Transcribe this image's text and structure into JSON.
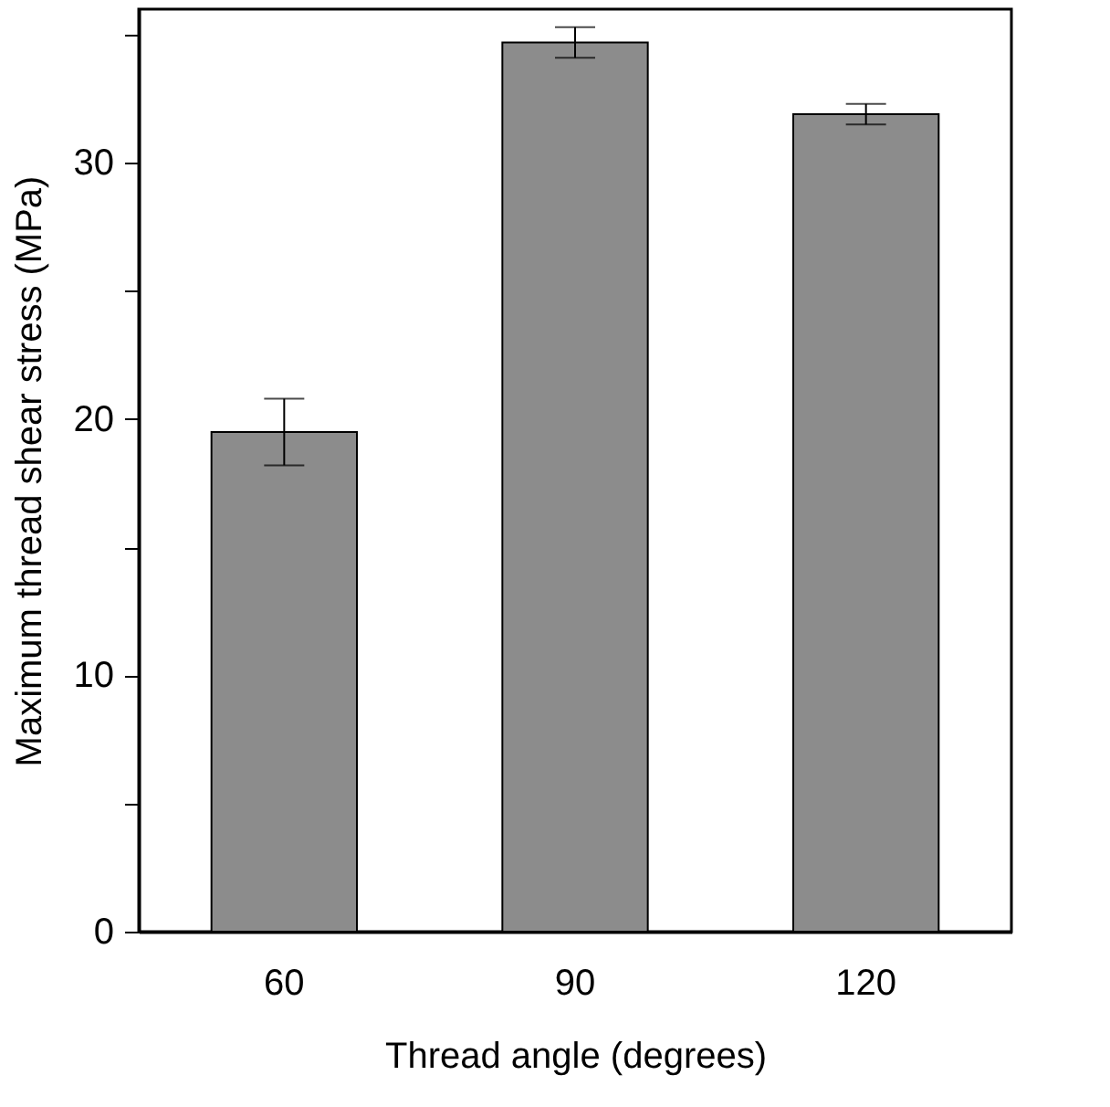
{
  "chart_data": {
    "type": "bar",
    "xlabel": "Thread angle (degrees)",
    "ylabel": "Maximum thread shear stress (MPa)",
    "categories": [
      "60",
      "90",
      "120"
    ],
    "values": [
      19.5,
      34.7,
      31.9
    ],
    "errors": [
      1.3,
      0.6,
      0.4
    ],
    "color": "#8c8c8c",
    "ylim": [
      0,
      36
    ],
    "yticks": [
      0,
      {
        "value": 5,
        "label": null
      },
      10,
      {
        "value": 15,
        "label": null
      },
      20,
      {
        "value": 25,
        "label": null
      },
      30,
      {
        "value": 35,
        "label": null
      }
    ],
    "grid": false
  }
}
